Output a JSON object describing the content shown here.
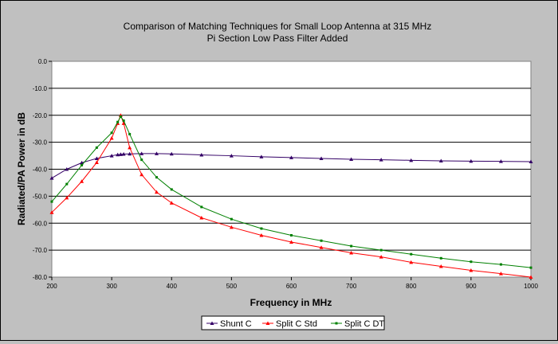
{
  "chart_data": {
    "type": "line",
    "title": "Comparison of Matching Techniques for Small Loop Antenna at 315 MHz",
    "subtitle": "Pi Section Low Pass Filter Added",
    "xlabel": "Frequency in MHz",
    "ylabel": "Radiated/PA Power in dB",
    "xlim": [
      200,
      1000
    ],
    "ylim": [
      -80,
      0
    ],
    "x_ticks": [
      "200",
      "300",
      "400",
      "500",
      "600",
      "700",
      "800",
      "900",
      "1000"
    ],
    "y_ticks": [
      "0.0",
      "-10.0",
      "-20.0",
      "-30.0",
      "-40.0",
      "-50.0",
      "-60.0",
      "-70.0",
      "-80.0"
    ],
    "grid": true,
    "legend_position": "bottom",
    "x": [
      200,
      225,
      250,
      275,
      300,
      310,
      315,
      320,
      330,
      350,
      375,
      400,
      450,
      500,
      550,
      600,
      650,
      700,
      750,
      800,
      850,
      900,
      950,
      1000
    ],
    "series": [
      {
        "name": "Shunt C",
        "color": "#330066",
        "marker": "triangle",
        "values": [
          -43.3,
          -40.0,
          -37.6,
          -36.0,
          -35.0,
          -34.6,
          -34.5,
          -34.4,
          -34.3,
          -34.2,
          -34.2,
          -34.3,
          -34.7,
          -35.0,
          -35.4,
          -35.7,
          -36.0,
          -36.3,
          -36.5,
          -36.7,
          -36.9,
          -37.0,
          -37.1,
          -37.2
        ]
      },
      {
        "name": "Split C Std",
        "color": "#ff0000",
        "marker": "triangle",
        "values": [
          -56.0,
          -50.6,
          -44.5,
          -37.5,
          -28.5,
          -23.0,
          -20.0,
          -23.0,
          -32.0,
          -42.0,
          -48.5,
          -52.5,
          -58.0,
          -61.5,
          -64.5,
          -67.0,
          -69.0,
          -71.0,
          -72.5,
          -74.5,
          -76.0,
          -77.5,
          -78.7,
          -80.0
        ]
      },
      {
        "name": "Split C DT",
        "color": "#008000",
        "marker": "square",
        "values": [
          -52.0,
          -45.5,
          -38.5,
          -32.0,
          -26.5,
          -22.5,
          -20.5,
          -22.0,
          -27.0,
          -36.5,
          -43.0,
          -47.5,
          -54.0,
          -58.5,
          -62.0,
          -64.5,
          -66.5,
          -68.5,
          -70.0,
          -71.5,
          -73.0,
          -74.3,
          -75.3,
          -76.5
        ]
      }
    ]
  }
}
